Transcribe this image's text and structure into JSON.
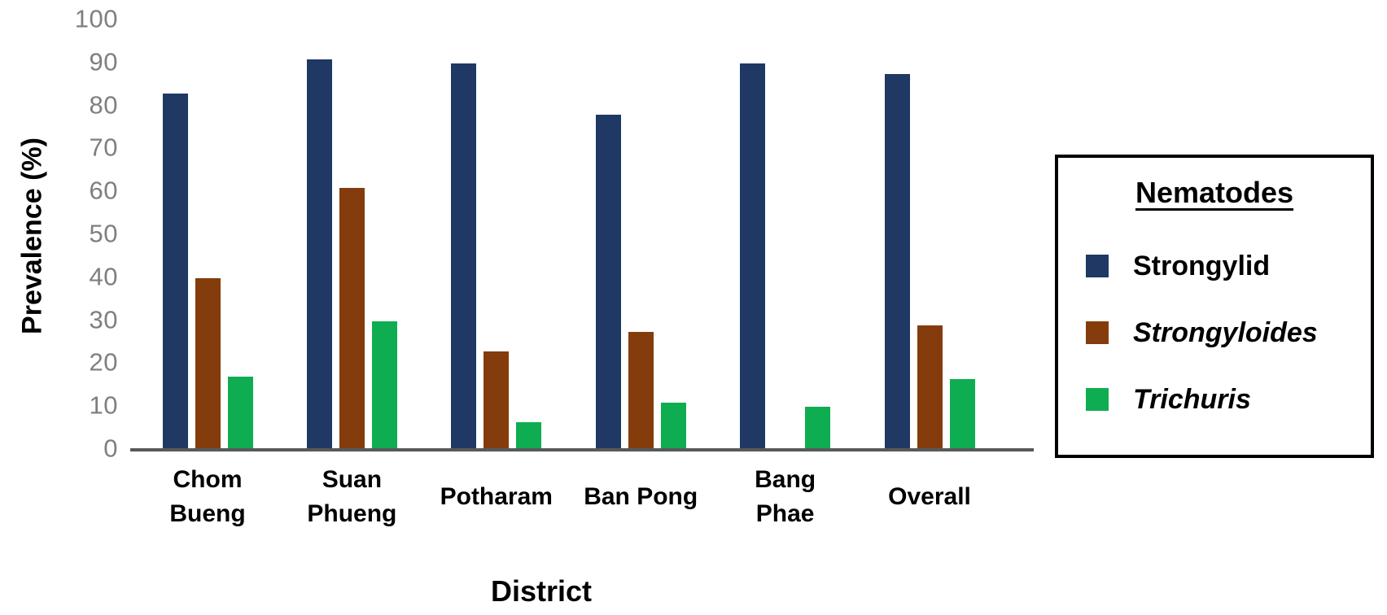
{
  "chart_data": {
    "type": "bar",
    "title": "",
    "xlabel": "District",
    "ylabel": "Prevalence (%)",
    "ylim": [
      0,
      100
    ],
    "yticks": [
      100,
      90,
      80,
      70,
      60,
      50,
      40,
      30,
      20,
      10,
      0
    ],
    "grid": false,
    "legend": {
      "title": "Nematodes",
      "position": "right",
      "border": true
    },
    "categories": [
      "Chom Bueng",
      "Suan Phueng",
      "Potharam",
      "Ban Pong",
      "Bang Phae",
      "Overall"
    ],
    "category_label_lines": [
      [
        "Chom",
        "Bueng"
      ],
      [
        "Suan",
        "Phueng"
      ],
      [
        "Potharam"
      ],
      [
        "Ban Pong"
      ],
      [
        "Bang",
        "Phae"
      ],
      [
        "Overall"
      ]
    ],
    "series": [
      {
        "name": "Strongylid",
        "italic": false,
        "color": "#1F3864",
        "values": [
          83,
          91,
          90,
          78,
          90,
          87.5
        ]
      },
      {
        "name": "Strongyloides",
        "italic": true,
        "color": "#843C0C",
        "values": [
          40,
          61,
          23,
          27.5,
          0,
          29
        ]
      },
      {
        "name": "Trichuris",
        "italic": true,
        "color": "#0EAD51",
        "values": [
          17,
          30,
          6.5,
          11,
          10,
          16.5
        ]
      }
    ]
  },
  "colors": {
    "background": "#FFFFFF",
    "axis_line": "#595959",
    "tick_label": "#7F7F7F",
    "text": "#000000"
  }
}
